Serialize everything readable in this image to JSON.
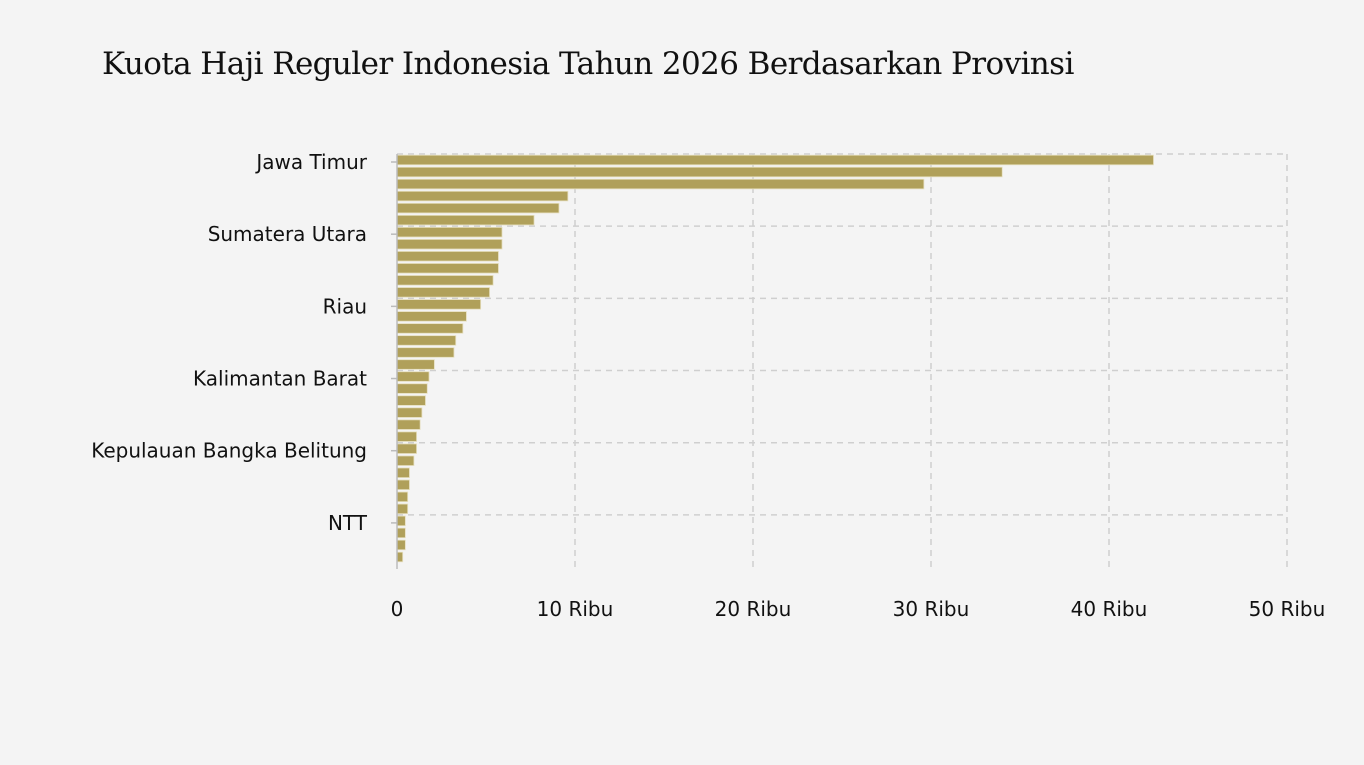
{
  "chart_data": {
    "type": "bar",
    "orientation": "horizontal",
    "title": "Kuota Haji Reguler Indonesia Tahun 2026 Berdasarkan Provinsi",
    "xlabel": "",
    "ylabel": "",
    "xlim": [
      0,
      50000
    ],
    "xticks": [
      0,
      10000,
      20000,
      30000,
      40000,
      50000
    ],
    "xtick_labels": [
      "0",
      "10 Ribu",
      "20 Ribu",
      "30 Ribu",
      "40 Ribu",
      "50 Ribu"
    ],
    "categories": [
      "Jawa Timur",
      "",
      "",
      "",
      "",
      "",
      "Sumatera Utara",
      "",
      "",
      "",
      "",
      "",
      "Riau",
      "",
      "",
      "",
      "",
      "",
      "Kalimantan Barat",
      "",
      "",
      "",
      "",
      "",
      "Kepulauan Bangka Belitung",
      "",
      "",
      "",
      "",
      "",
      "NTT",
      "",
      "",
      ""
    ],
    "values": [
      42500,
      34000,
      29600,
      9600,
      9100,
      7700,
      5900,
      5900,
      5700,
      5700,
      5400,
      5200,
      4700,
      3900,
      3700,
      3300,
      3200,
      2100,
      1800,
      1700,
      1600,
      1400,
      1300,
      1100,
      1100,
      950,
      700,
      700,
      600,
      600,
      470,
      470,
      470,
      320
    ],
    "color": "#b0a05a",
    "grid": true
  }
}
